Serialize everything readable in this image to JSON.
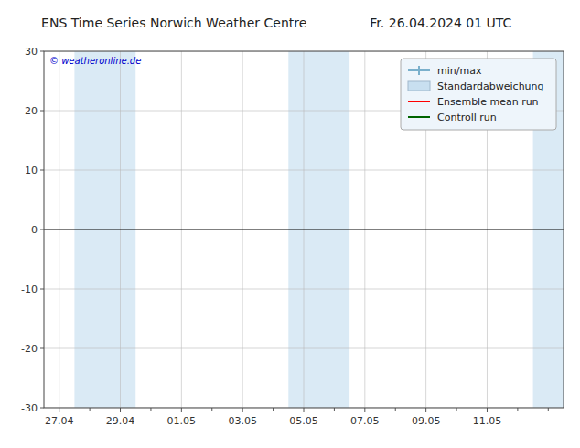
{
  "chart_data": {
    "type": "line",
    "title": "ENS Time Series Norwich Weather Centre",
    "subtitle": "Fr. 26.04.2024 01 UTC",
    "annotations": [
      "© weatheronline.de"
    ],
    "categories": [
      "27.04",
      null,
      "29.04",
      null,
      "01.05",
      null,
      "03.05",
      null,
      "05.05",
      null,
      "07.05",
      null,
      "09.05",
      null,
      "11.05",
      null,
      null
    ],
    "series": [
      {
        "name": "min/max",
        "color": "#7ab0cc",
        "marker": "line",
        "values": [
          null,
          null,
          null,
          null,
          null,
          null,
          null,
          null,
          null,
          null,
          null,
          null,
          null,
          null,
          null,
          null,
          null
        ]
      },
      {
        "name": "Standardabweichung",
        "type": "area",
        "color": "#c8dff0",
        "values": [
          null,
          null,
          null,
          null,
          null,
          null,
          null,
          null,
          null,
          null,
          null,
          null,
          null,
          null,
          null,
          null,
          null
        ]
      },
      {
        "name": "Ensemble mean run",
        "color": "#ff0000",
        "values": [
          null,
          null,
          null,
          null,
          null,
          null,
          null,
          null,
          null,
          null,
          null,
          null,
          null,
          null,
          null,
          null,
          null
        ]
      },
      {
        "name": "Controll run",
        "color": "#006400",
        "values": [
          null,
          null,
          null,
          null,
          null,
          null,
          null,
          null,
          null,
          null,
          null,
          null,
          null,
          null,
          null,
          null,
          null
        ]
      }
    ],
    "bands": [
      [
        0.5,
        2.5
      ],
      [
        7.5,
        9.5
      ],
      [
        15.5,
        16.5
      ]
    ],
    "band_color": "#daeaf5",
    "ylim": [
      -30,
      30
    ],
    "yticks": [
      -30,
      -20,
      -10,
      0,
      10,
      20,
      30
    ],
    "grid": true,
    "legend": "upper right"
  }
}
